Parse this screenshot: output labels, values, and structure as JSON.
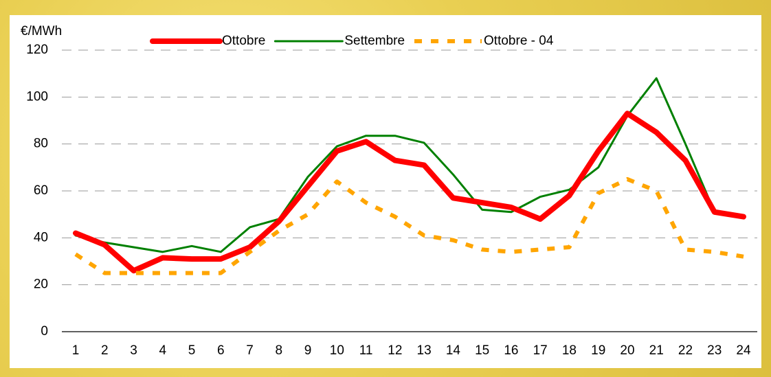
{
  "chart_data": {
    "type": "line",
    "y_label": "€/MWh",
    "categories": [
      "1",
      "2",
      "3",
      "4",
      "5",
      "6",
      "7",
      "8",
      "9",
      "10",
      "11",
      "12",
      "13",
      "14",
      "15",
      "16",
      "17",
      "18",
      "19",
      "20",
      "21",
      "22",
      "23",
      "24"
    ],
    "series": [
      {
        "name": "Ottobre",
        "color": "#ff0000",
        "width": 8,
        "dashed": false,
        "values": [
          42,
          37,
          26,
          31.5,
          31,
          31,
          36,
          47,
          62,
          77,
          81,
          73,
          71,
          57,
          55,
          53,
          48,
          58,
          77,
          93,
          85,
          73,
          51,
          49
        ]
      },
      {
        "name": "Settembre",
        "color": "#008000",
        "width": 3,
        "dashed": false,
        "values": [
          41,
          38,
          36,
          34,
          36.5,
          34,
          44.5,
          48,
          66,
          79,
          83.5,
          83.5,
          80.5,
          67,
          52,
          51,
          57.5,
          60.5,
          70,
          92,
          108,
          80,
          51,
          48.5
        ]
      },
      {
        "name": "Ottobre - 04",
        "color": "#ffa500",
        "width": 6,
        "dashed": true,
        "values": [
          33,
          25,
          25,
          25,
          25,
          25,
          34,
          43,
          50,
          64,
          55,
          49,
          41,
          39,
          35,
          34,
          35,
          36,
          59,
          65,
          60,
          35,
          34,
          32
        ]
      }
    ],
    "ylim": [
      0,
      120
    ],
    "yticks": [
      0,
      20,
      40,
      60,
      80,
      100,
      120
    ],
    "grid": true,
    "legend": "top"
  }
}
